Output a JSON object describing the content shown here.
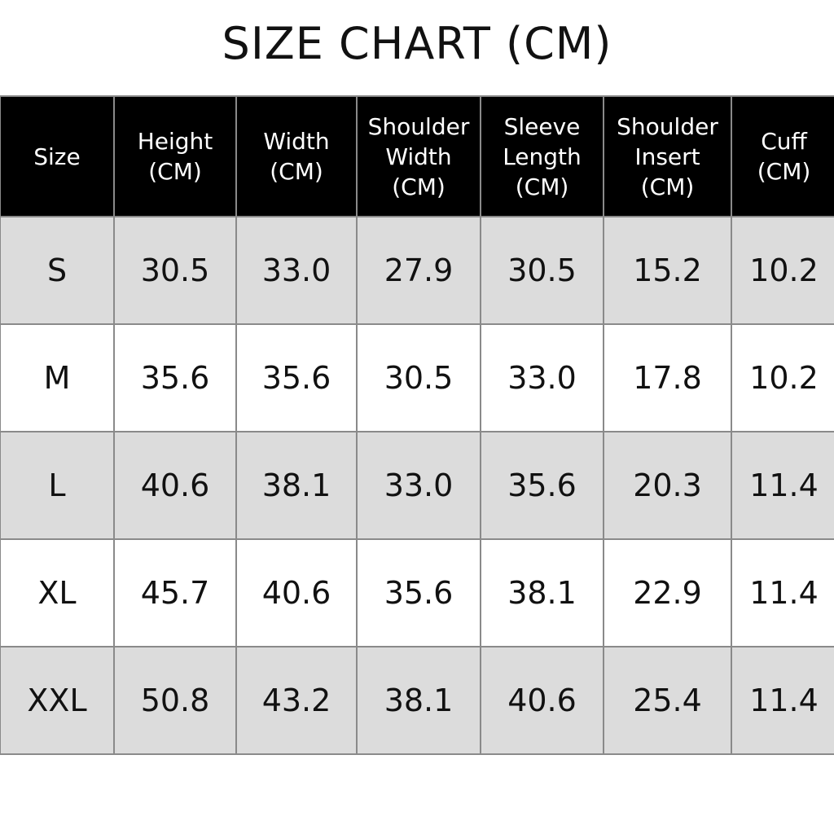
{
  "title": "SIZE CHART (CM)",
  "table": {
    "headers": [
      [
        "Size"
      ],
      [
        "Height",
        "(CM)"
      ],
      [
        "Width",
        "(CM)"
      ],
      [
        "Shoulder",
        "Width",
        "(CM)"
      ],
      [
        "Sleeve",
        "Length",
        "(CM)"
      ],
      [
        "Shoulder",
        "Insert",
        "(CM)"
      ],
      [
        "Cuff",
        "(CM)"
      ]
    ],
    "rows": [
      [
        "S",
        "30.5",
        "33.0",
        "27.9",
        "30.5",
        "15.2",
        "10.2"
      ],
      [
        "M",
        "35.6",
        "35.6",
        "30.5",
        "33.0",
        "17.8",
        "10.2"
      ],
      [
        "L",
        "40.6",
        "38.1",
        "33.0",
        "35.6",
        "20.3",
        "11.4"
      ],
      [
        "XL",
        "45.7",
        "40.6",
        "35.6",
        "38.1",
        "22.9",
        "11.4"
      ],
      [
        "XXL",
        "50.8",
        "43.2",
        "38.1",
        "40.6",
        "25.4",
        "11.4"
      ]
    ]
  },
  "colors": {
    "header_bg": "#000000",
    "header_text": "#ffffff",
    "stripe": "#dcdcdc",
    "border": "#8a8a8a"
  }
}
